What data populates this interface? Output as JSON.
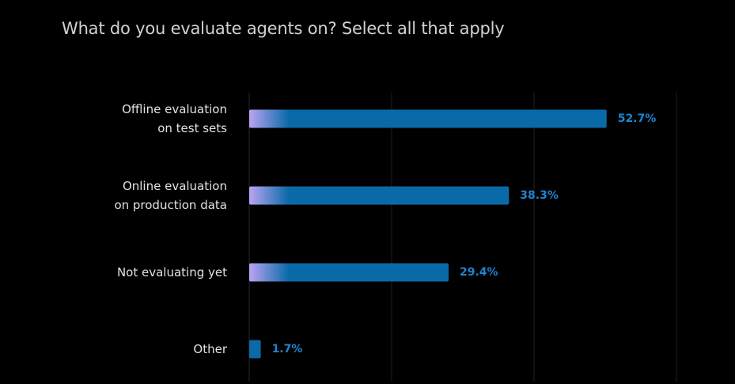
{
  "chart_data": {
    "type": "bar",
    "orientation": "horizontal",
    "title": "What do you evaluate agents on? Select all that apply",
    "categories": [
      [
        "Offline evaluation",
        "on test sets"
      ],
      [
        "Online evaluation",
        "on production data"
      ],
      [
        "Not evaluating yet"
      ],
      [
        "Other"
      ]
    ],
    "values": [
      52.7,
      38.3,
      29.4,
      1.7
    ],
    "value_labels": [
      "52.7%",
      "38.3%",
      "29.4%",
      "1.7%"
    ],
    "xlim": [
      0,
      63
    ],
    "gridlines": [
      0,
      21,
      42,
      63
    ],
    "grid": true,
    "xlabel": "",
    "ylabel": ""
  },
  "colors": {
    "background": "#000000",
    "bar": "#0a6aa8",
    "bar_gradient_start": "#b9a4f2",
    "value_text": "#1d84d0",
    "gridline": "#1f1f1f",
    "label_text": "#e2e2e2",
    "title_text": "#d2d2d2"
  }
}
